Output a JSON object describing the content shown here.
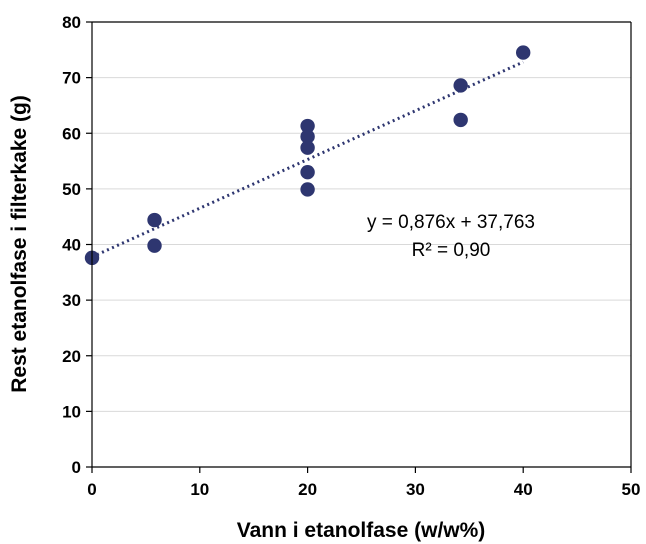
{
  "chart_data": {
    "type": "scatter",
    "xlabel": "Vann i etanolfase (w/w%)",
    "ylabel": "Rest etanolfase i filterkake (g)",
    "xlim": [
      0,
      50
    ],
    "ylim": [
      0,
      80
    ],
    "x_ticks": [
      "0",
      "10",
      "20",
      "30",
      "40",
      "50"
    ],
    "y_ticks": [
      "0",
      "10",
      "20",
      "30",
      "40",
      "50",
      "60",
      "70",
      "80"
    ],
    "grid": "horizontal",
    "marker_color": "#2e3670",
    "points": [
      {
        "x": 0,
        "y": 37.6
      },
      {
        "x": 5.8,
        "y": 44.4
      },
      {
        "x": 5.8,
        "y": 39.8
      },
      {
        "x": 20,
        "y": 61.3
      },
      {
        "x": 20,
        "y": 59.4
      },
      {
        "x": 20,
        "y": 57.4
      },
      {
        "x": 20,
        "y": 53.0
      },
      {
        "x": 20,
        "y": 49.9
      },
      {
        "x": 34.2,
        "y": 68.6
      },
      {
        "x": 34.2,
        "y": 62.4
      },
      {
        "x": 40,
        "y": 74.5
      }
    ],
    "trendline": {
      "type": "linear",
      "slope": 0.876,
      "intercept": 37.763,
      "x_range": [
        0,
        40
      ],
      "style": "dotted",
      "equation_text": "y = 0,876x + 37,763",
      "r2_text": "R² = 0,90"
    }
  }
}
